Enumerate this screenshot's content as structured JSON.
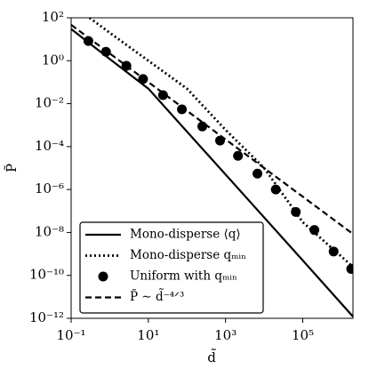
{
  "chart_data": {
    "type": "line",
    "xlog": true,
    "ylog": true,
    "grid": false,
    "xlabel": "d̃",
    "ylabel": "P̃",
    "xlim": [
      0.1,
      2000000
    ],
    "ylim": [
      1e-12,
      100
    ],
    "xticks": [
      {
        "value": 0.1,
        "label": "10⁻¹"
      },
      {
        "value": 10,
        "label": "10¹"
      },
      {
        "value": 1000,
        "label": "10³"
      },
      {
        "value": 100000,
        "label": "10⁵"
      }
    ],
    "yticks": [
      {
        "value": 1e-12,
        "label": "10⁻¹²"
      },
      {
        "value": 1e-10,
        "label": "10⁻¹⁰"
      },
      {
        "value": 1e-08,
        "label": "10⁻⁸"
      },
      {
        "value": 1e-06,
        "label": "10⁻⁶"
      },
      {
        "value": 0.0001,
        "label": "10⁻⁴"
      },
      {
        "value": 0.01,
        "label": "10⁻²"
      },
      {
        "value": 1,
        "label": "10⁰"
      },
      {
        "value": 100,
        "label": "10²"
      }
    ],
    "legend": "lower left",
    "series": [
      {
        "name": "Mono-disperse ⟨q⟩",
        "color": "#000000",
        "linestyle": "solid",
        "x": [
          0.1,
          1,
          10,
          100,
          1000,
          10000,
          100000,
          2000000
        ],
        "values": [
          30,
          1.2,
          0.05,
          0.0005,
          5e-06,
          5e-08,
          5e-10,
          1.2e-12
        ]
      },
      {
        "name": "Mono-disperse qₘᵢₙ",
        "color": "#000000",
        "linestyle": "dotted",
        "x": [
          0.3,
          1,
          10,
          100,
          1000,
          10000,
          100000,
          2000000
        ],
        "values": [
          100,
          20,
          1,
          0.05,
          0.0006,
          1e-05,
          3e-08,
          2.5e-10
        ]
      },
      {
        "name": "Uniform with qₘᵢₙ",
        "color": "#000000",
        "linestyle": "none",
        "marker": "circle",
        "x": [
          0.28,
          0.8,
          2.7,
          7.3,
          24,
          74,
          250,
          720,
          2100,
          6700,
          20000,
          66000,
          200000,
          630000,
          1800000
        ],
        "values": [
          8.3,
          2.6,
          0.58,
          0.14,
          0.025,
          0.0054,
          0.00087,
          0.00019,
          3.7e-05,
          5.5e-06,
          1e-06,
          9e-08,
          1.3e-08,
          1.3e-09,
          2e-10
        ]
      },
      {
        "name": "P̃ ∼ d̃⁻⁴ᐟ³",
        "color": "#000000",
        "linestyle": "dashed",
        "x": [
          0.1,
          2000000
        ],
        "values": [
          47,
          8.5e-09
        ]
      }
    ]
  }
}
